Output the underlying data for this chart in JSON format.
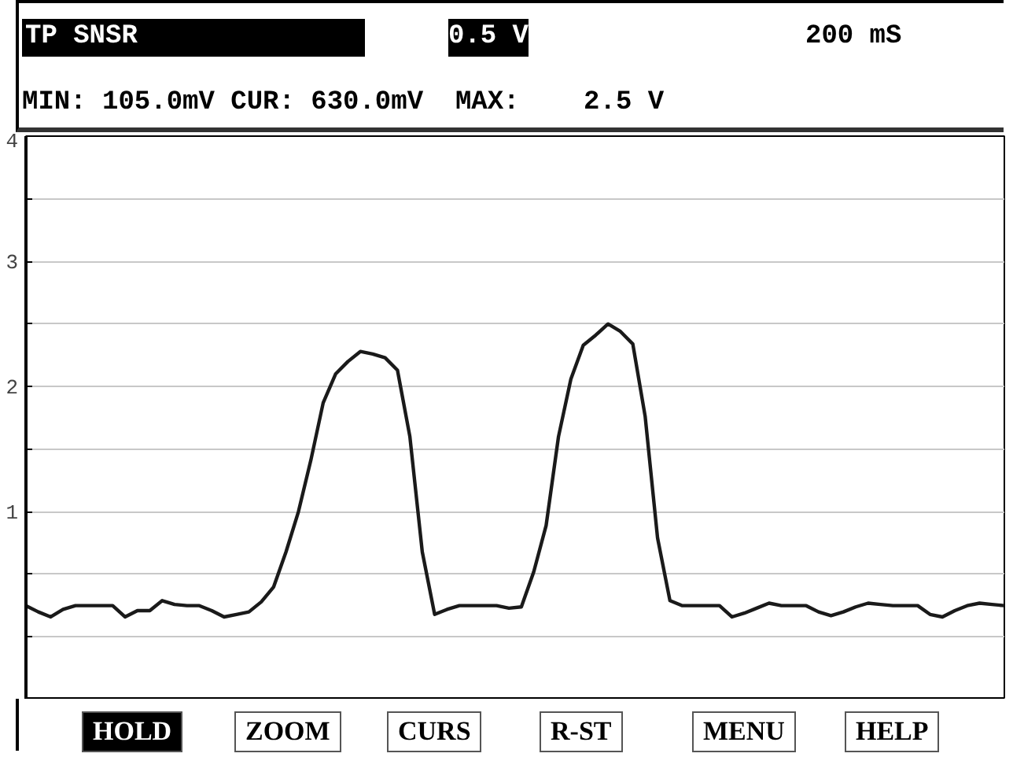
{
  "chart_data": {
    "type": "line",
    "title": "TP SNSR",
    "subtitle": "MIN: 105.0mV CUR: 630.0mV  MAX:    2.5 V",
    "annotations": [
      "0.5 V",
      "200 mS",
      "HOLD",
      "ZOOM",
      "CURS",
      "R-ST",
      "MENU",
      "HELP"
    ],
    "categories": [
      null,
      null,
      null,
      null,
      null,
      null,
      null,
      null,
      null,
      null,
      null,
      null,
      null,
      null,
      null,
      null,
      null,
      null,
      null,
      null,
      null,
      null,
      null,
      null,
      null,
      null,
      null,
      null,
      null,
      null,
      null,
      null,
      null,
      null,
      null,
      null,
      null,
      null,
      null,
      null,
      null,
      null,
      null,
      null,
      null,
      null,
      null,
      null,
      null,
      null,
      null,
      null,
      null,
      null,
      null,
      null,
      null,
      null,
      null,
      null,
      null,
      null,
      null,
      null,
      null,
      null,
      null,
      null,
      null,
      null,
      null,
      null,
      null,
      null,
      null,
      null,
      null,
      null,
      null,
      null
    ],
    "series": [
      {
        "color": "#1a1a1a",
        "values": [
          0.25,
          0.2,
          0.16,
          0.22,
          0.25,
          0.25,
          0.25,
          0.25,
          0.16,
          0.21,
          0.21,
          0.29,
          0.26,
          0.25,
          0.25,
          0.21,
          0.16,
          0.18,
          0.2,
          0.28,
          0.4,
          0.68,
          1.0,
          1.41,
          1.87,
          2.1,
          2.2,
          2.28,
          2.26,
          2.23,
          2.13,
          1.6,
          0.68,
          0.18,
          0.22,
          0.25,
          0.25,
          0.25,
          0.25,
          0.23,
          0.24,
          0.52,
          0.89,
          1.6,
          2.06,
          2.33,
          2.41,
          2.5,
          2.44,
          2.34,
          1.76,
          0.79,
          0.29,
          0.25,
          0.25,
          0.25,
          0.25,
          0.16,
          0.19,
          0.23,
          0.27,
          0.25,
          0.25,
          0.25,
          0.2,
          0.17,
          0.2,
          0.24,
          0.27,
          0.26,
          0.25,
          0.25,
          0.25,
          0.18,
          0.16,
          0.21,
          0.25,
          0.27,
          0.26,
          0.25
        ]
      }
    ],
    "ylim": [
      -0.5,
      4
    ],
    "yticks": [
      {
        "value": 0,
        "label": null
      },
      {
        "value": 0.5,
        "label": null
      },
      1,
      {
        "value": 1.5,
        "label": null
      },
      2,
      {
        "value": 2.5,
        "label": null
      },
      3,
      {
        "value": 3.5,
        "label": null
      },
      4
    ],
    "tick_labels": "y",
    "grid": "y",
    "marker": "none",
    "line_style": "solid"
  }
}
